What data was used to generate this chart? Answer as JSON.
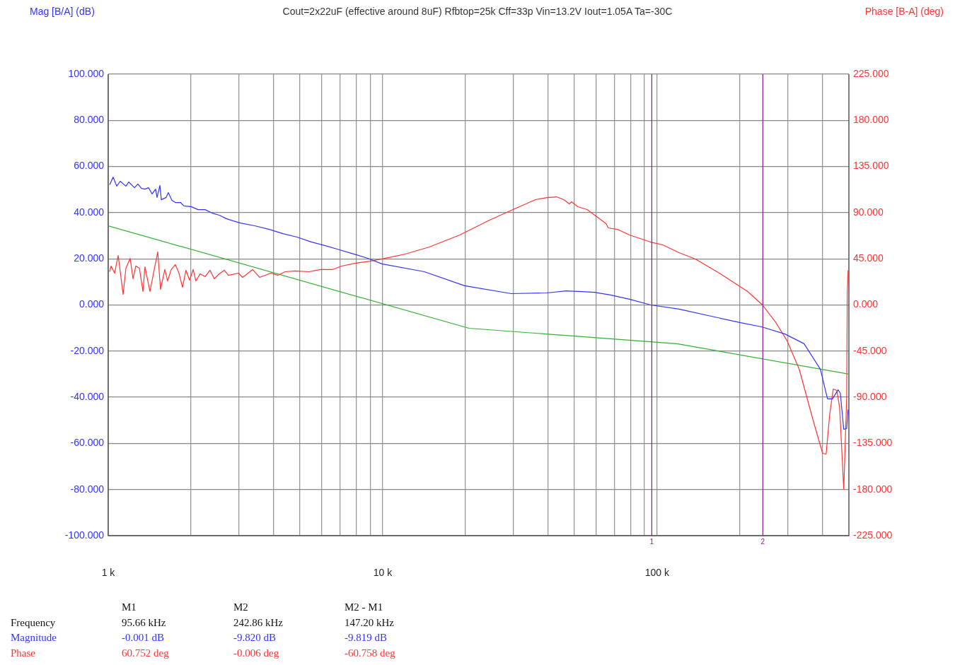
{
  "chart_data": {
    "type": "line",
    "title": "Cout=2x22uF (effective around 8uF) Rfbtop=25k  Cff=33p  Vin=13.2V  Iout=1.05A   Ta=-30C",
    "log": "x",
    "grid": true,
    "marker": "none",
    "xlim": [
      1000,
      500000
    ],
    "xticks": [
      {
        "value": 1000,
        "label": "1 k"
      },
      {
        "value": 2000,
        "label": null
      },
      {
        "value": 3000,
        "label": null
      },
      {
        "value": 4000,
        "label": null
      },
      {
        "value": 5000,
        "label": null
      },
      {
        "value": 6000,
        "label": null
      },
      {
        "value": 7000,
        "label": null
      },
      {
        "value": 8000,
        "label": null
      },
      {
        "value": 9000,
        "label": null
      },
      {
        "value": 10000,
        "label": "10 k"
      },
      {
        "value": 20000,
        "label": null
      },
      {
        "value": 30000,
        "label": null
      },
      {
        "value": 40000,
        "label": null
      },
      {
        "value": 50000,
        "label": null
      },
      {
        "value": 60000,
        "label": null
      },
      {
        "value": 70000,
        "label": null
      },
      {
        "value": 80000,
        "label": null
      },
      {
        "value": 90000,
        "label": null
      },
      {
        "value": 100000,
        "label": "100 k"
      },
      {
        "value": 200000,
        "label": null
      },
      {
        "value": 300000,
        "label": null
      },
      {
        "value": 400000,
        "label": null
      }
    ],
    "ylim": [
      -100,
      100
    ],
    "yticks": [
      {
        "value": -100,
        "label": "-100.000"
      },
      {
        "value": -80,
        "label": "-80.000"
      },
      {
        "value": -60,
        "label": "-60.000"
      },
      {
        "value": -40,
        "label": "-40.000"
      },
      {
        "value": -20,
        "label": "-20.000"
      },
      {
        "value": 0,
        "label": "0.000"
      },
      {
        "value": 20,
        "label": "20.000"
      },
      {
        "value": 40,
        "label": "40.000"
      },
      {
        "value": 60,
        "label": "60.000"
      },
      {
        "value": 80,
        "label": "80.000"
      },
      {
        "value": 100,
        "label": "100.000"
      }
    ],
    "y2lim": [
      -225,
      225
    ],
    "y2ticks": [
      {
        "value": -225,
        "label": "-225.000"
      },
      {
        "value": -180,
        "label": "-180.000"
      },
      {
        "value": -135,
        "label": "-135.000"
      },
      {
        "value": -90,
        "label": "-90.000"
      },
      {
        "value": -45,
        "label": "-45.000"
      },
      {
        "value": 0,
        "label": "0.000"
      },
      {
        "value": 45,
        "label": "45.000"
      },
      {
        "value": 90,
        "label": "90.000"
      },
      {
        "value": 135,
        "label": "135.000"
      },
      {
        "value": 180,
        "label": "180.000"
      },
      {
        "value": 225,
        "label": "225.000"
      }
    ],
    "series": [
      {
        "color": "#3333ff",
        "x": [
          1012,
          1042,
          1074,
          1106,
          1160,
          1188,
          1246,
          1283,
          1322,
          1361,
          1403,
          1445,
          1488,
          1506,
          1543,
          1561,
          1626,
          1656,
          1706,
          1758,
          1833,
          1887,
          2003,
          2125,
          2254,
          2392,
          2539,
          2692,
          2858,
          3033,
          3418,
          3846,
          4333,
          4877,
          5495,
          6180,
          6966,
          7834,
          8831,
          9931,
          14190,
          19900,
          29440,
          39630,
          46530,
          53330,
          59020,
          67610,
          79290,
          94840,
          120200,
          201400,
          240400,
          292400,
          343300,
          393700,
          417800,
          435500,
          456900,
          465400,
          478900,
          490800,
          496700
        ],
        "values": [
          52.1,
          55.4,
          51.5,
          53.6,
          51.5,
          53.3,
          50.8,
          52.4,
          50.5,
          50.2,
          50.8,
          48.1,
          50.2,
          46.6,
          51.8,
          45.6,
          46.6,
          48.7,
          45.3,
          44.4,
          44.4,
          42.9,
          42.6,
          41.3,
          41.3,
          39.8,
          38.9,
          37.4,
          36.4,
          35.5,
          34.3,
          32.8,
          30.9,
          29.4,
          27.3,
          25.7,
          23.9,
          22.1,
          20.2,
          17.8,
          14.4,
          8.3,
          4.9,
          5.2,
          6.1,
          5.8,
          5.5,
          4.3,
          2.5,
          0,
          -1.8,
          -7.7,
          -9.5,
          -12.6,
          -16.8,
          -27.9,
          -40.7,
          -40.7,
          -36.8,
          -38.3,
          -53.9,
          -53.6,
          -45.3
        ]
      },
      {
        "color": "#ff3333",
        "axis": "y2",
        "x": [
          1012,
          1024,
          1055,
          1087,
          1133,
          1160,
          1202,
          1231,
          1260,
          1299,
          1338,
          1361,
          1419,
          1471,
          1515,
          1551,
          1608,
          1646,
          1696,
          1757,
          1810,
          1865,
          1920,
          1979,
          2039,
          2087,
          2163,
          2255,
          2350,
          2435,
          2539,
          2647,
          2743,
          2981,
          3088,
          3357,
          3560,
          3915,
          4156,
          4410,
          4791,
          5395,
          5933,
          6561,
          7088,
          7982,
          8987,
          10550,
          12090,
          14790,
          19100,
          24210,
          29450,
          36050,
          39630,
          43060,
          45710,
          47880,
          48750,
          51420,
          55590,
          65200,
          66370,
          71740,
          79290,
          94840,
          104900,
          120200,
          137800,
          168600,
          213800,
          242100,
          270900,
          297900,
          329600,
          371400,
          401100,
          413100,
          425600,
          438500,
          451800,
          462600,
          478900,
          490800,
          493400,
          496700
        ],
        "values": [
          32.4,
          37.9,
          31.0,
          48.2,
          10.3,
          35.8,
          45.5,
          25.5,
          37.9,
          35.8,
          13.1,
          37.2,
          13.1,
          34.5,
          51.7,
          15.2,
          34.5,
          23.4,
          34.5,
          39.3,
          31.0,
          17.2,
          33.8,
          24.1,
          34.5,
          23.4,
          30.3,
          27.6,
          33.8,
          25.5,
          30.3,
          33.8,
          28.9,
          31.0,
          26.9,
          34.5,
          26.9,
          31.0,
          28.9,
          32.4,
          33.1,
          32.4,
          34.5,
          34.5,
          37.9,
          40.7,
          42.7,
          46.2,
          49.6,
          56.5,
          68.2,
          82.0,
          92.3,
          102.7,
          104.7,
          105.4,
          102.7,
          98.5,
          100.6,
          95.8,
          93.0,
          79.2,
          75.1,
          73.7,
          68.2,
          61.3,
          58.6,
          51.0,
          44.8,
          31.0,
          13.1,
          0,
          -17.2,
          -35.1,
          -62.7,
          -113.7,
          -144.7,
          -145.4,
          -106.8,
          -82.0,
          -83.4,
          -99.9,
          -179.8,
          -90.3,
          13.1,
          33.8
        ]
      },
      {
        "color": "#33b033",
        "x": [
          1000,
          20620,
          118100,
          500000
        ],
        "values": [
          34.3,
          -10.1,
          -16.8,
          -30.0
        ]
      }
    ],
    "ref_lines": [
      {
        "axis": "x",
        "value": 95660,
        "color": "#8b1a8b"
      },
      {
        "axis": "x",
        "value": 242860,
        "color": "#8b1a8b"
      }
    ],
    "annotations": [
      "Mag [B/A] (dB)",
      "Phase [B-A] (deg)",
      "M1",
      "M2",
      "M2 - M1",
      "Frequency",
      "95.66 kHz",
      "242.86 kHz",
      "147.20 kHz",
      "Magnitude",
      "-0.001 dB",
      "-9.820 dB",
      "-9.819 dB",
      "Phase",
      "60.752 deg",
      "-0.006 deg",
      "-60.758 deg",
      {
        "text": "1",
        "x": 95660,
        "y": -100
      },
      {
        "text": "2",
        "x": 242860,
        "y": -100
      }
    ]
  }
}
